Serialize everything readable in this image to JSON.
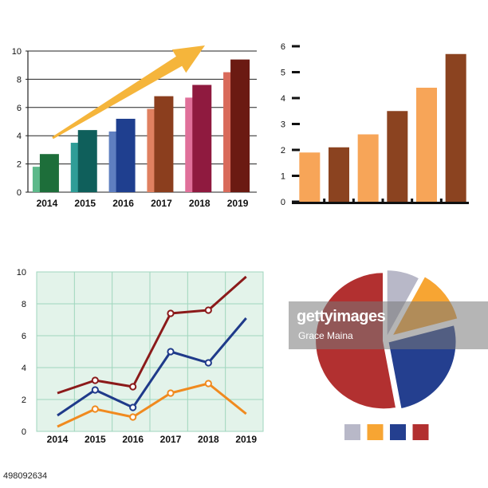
{
  "chart_data": [
    {
      "type": "bar",
      "categories": [
        "2014",
        "2015",
        "2016",
        "2017",
        "2018",
        "2019"
      ],
      "series": [
        {
          "values": [
            1.8,
            3.5,
            4.3,
            5.9,
            6.7,
            8.5
          ]
        },
        {
          "values": [
            2.7,
            4.4,
            5.2,
            6.8,
            7.6,
            9.4
          ]
        }
      ],
      "ylim": [
        0,
        10
      ],
      "yticks": [
        "0",
        "2",
        "4",
        "6",
        "8",
        "10"
      ],
      "grid": true,
      "colors_back": [
        "#5cb98a",
        "#2f9d97",
        "#5f7fc0",
        "#e08060",
        "#e0709a",
        "#d96a5a"
      ],
      "colors_front": [
        "#1d6e3a",
        "#0f5f5b",
        "#1f3f8f",
        "#8b3e1e",
        "#8f1a3f",
        "#6b1a12"
      ],
      "arrow_color": "#f5b53b"
    },
    {
      "type": "bar",
      "values": [
        1.9,
        2.1,
        2.6,
        3.5,
        4.4,
        5.7
      ],
      "ylim": [
        0,
        6
      ],
      "yticks": [
        "0",
        "1",
        "2",
        "3",
        "4",
        "5",
        "6"
      ],
      "colors": [
        "#f7a558",
        "#8b4320",
        "#f7a558",
        "#8b4320",
        "#f7a558",
        "#8b4320"
      ]
    },
    {
      "type": "line",
      "x": [
        "2014",
        "2015",
        "2016",
        "2017",
        "2018",
        "2019"
      ],
      "series": [
        {
          "values": [
            2.4,
            3.2,
            2.8,
            7.4,
            7.6,
            9.7
          ],
          "color": "#8b1a1a"
        },
        {
          "values": [
            1.0,
            2.6,
            1.5,
            5.0,
            4.3,
            7.1
          ],
          "color": "#1f3a8a"
        },
        {
          "values": [
            0.3,
            1.4,
            0.9,
            2.4,
            3.0,
            1.1
          ],
          "color": "#f08a1f"
        }
      ],
      "ylim": [
        0,
        10
      ],
      "yticks": [
        "0",
        "2",
        "4",
        "6",
        "8",
        "10"
      ],
      "grid": true,
      "background": "#e3f3ea",
      "grid_color": "#9fd6bd"
    },
    {
      "type": "pie",
      "values": [
        8,
        13,
        26,
        53
      ],
      "colors": [
        "#b8b8c8",
        "#f7a533",
        "#243f8f",
        "#b23030"
      ],
      "legend": "bottom"
    }
  ],
  "watermark": {
    "brand": "gettyimages",
    "credit": "Grace Maina"
  },
  "image_id": "498092634"
}
